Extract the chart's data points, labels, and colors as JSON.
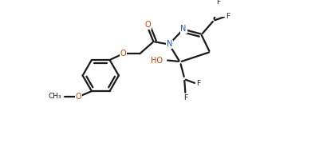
{
  "background_color": "#ffffff",
  "lc": "#1a1a1a",
  "nc": "#2255cc",
  "oc": "#cc4400",
  "figsize": [
    4.05,
    1.79
  ],
  "dpi": 100,
  "lw": 1.6,
  "fs": 7.0,
  "xlim": [
    0,
    11
  ],
  "ylim": [
    0,
    5
  ]
}
